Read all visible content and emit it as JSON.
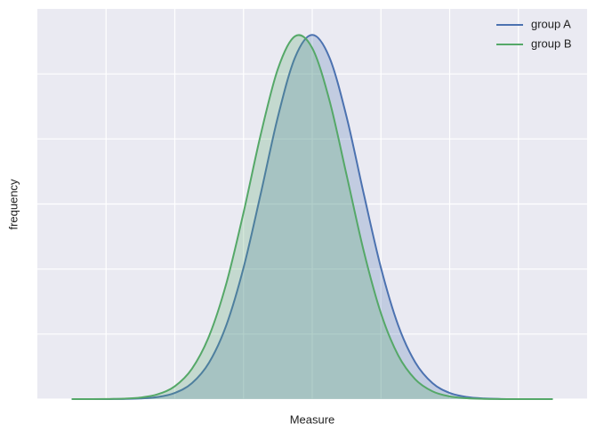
{
  "chart_data": {
    "type": "area-line",
    "xlabel": "Measure",
    "ylabel": "frequency",
    "x": [
      -3.5,
      -3.25,
      -3.0,
      -2.75,
      -2.5,
      -2.25,
      -2.0,
      -1.75,
      -1.5,
      -1.25,
      -1.0,
      -0.75,
      -0.5,
      -0.25,
      0,
      0.25,
      0.5,
      0.75,
      1.0,
      1.25,
      1.5,
      1.75,
      2.0,
      2.25,
      2.5,
      2.75,
      3.0,
      3.25,
      3.5
    ],
    "series": [
      {
        "name": "group A",
        "color": "#4c72b0",
        "values": [
          0.0,
          0.0001,
          0.0006,
          0.0025,
          0.0095,
          0.032,
          0.095,
          0.246,
          0.564,
          1.137,
          2.019,
          3.155,
          4.34,
          5.254,
          5.6,
          5.254,
          4.34,
          3.155,
          2.019,
          1.137,
          0.564,
          0.246,
          0.095,
          0.032,
          0.0095,
          0.0025,
          0.0006,
          0.0001,
          0.0
        ]
      },
      {
        "name": "group B",
        "color": "#55a868",
        "values": [
          0.0001,
          0.0004,
          0.0018,
          0.007,
          0.024,
          0.074,
          0.198,
          0.468,
          0.972,
          1.779,
          2.867,
          4.066,
          5.077,
          5.58,
          5.398,
          4.596,
          3.445,
          2.274,
          1.32,
          0.675,
          0.304,
          0.12,
          0.042,
          0.013,
          0.0035,
          0.0008,
          0.0002,
          0.0,
          0.0
        ]
      }
    ],
    "xlim": [
      -4,
      4
    ],
    "xticks": [
      -3,
      -2,
      -1,
      0,
      1,
      2,
      3
    ],
    "ylim": [
      0,
      6
    ],
    "yticks": [
      0,
      1,
      2,
      3,
      4,
      5
    ],
    "grid": true,
    "tick_labels": false,
    "fill_opacity": 0.25,
    "legend": "upper right"
  }
}
